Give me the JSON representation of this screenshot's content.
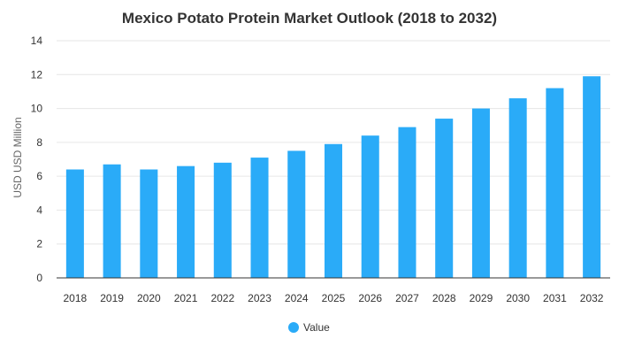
{
  "chart_data": {
    "type": "bar",
    "title": "Mexico Potato Protein Market Outlook (2018 to 2032)",
    "xlabel": "",
    "ylabel": "USD USD Million",
    "ylim": [
      0,
      14
    ],
    "yticks": [
      0,
      2,
      4,
      6,
      8,
      10,
      12,
      14
    ],
    "grid": true,
    "legend_placement": "bottom",
    "color": "#2aabf8",
    "categories": [
      "2018",
      "2019",
      "2020",
      "2021",
      "2022",
      "2023",
      "2024",
      "2025",
      "2026",
      "2027",
      "2028",
      "2029",
      "2030",
      "2031",
      "2032"
    ],
    "series": [
      {
        "name": "Value",
        "values": [
          6.4,
          6.7,
          6.4,
          6.6,
          6.8,
          7.1,
          7.5,
          7.9,
          8.4,
          8.9,
          9.4,
          10.0,
          10.6,
          11.2,
          11.9
        ]
      }
    ]
  }
}
